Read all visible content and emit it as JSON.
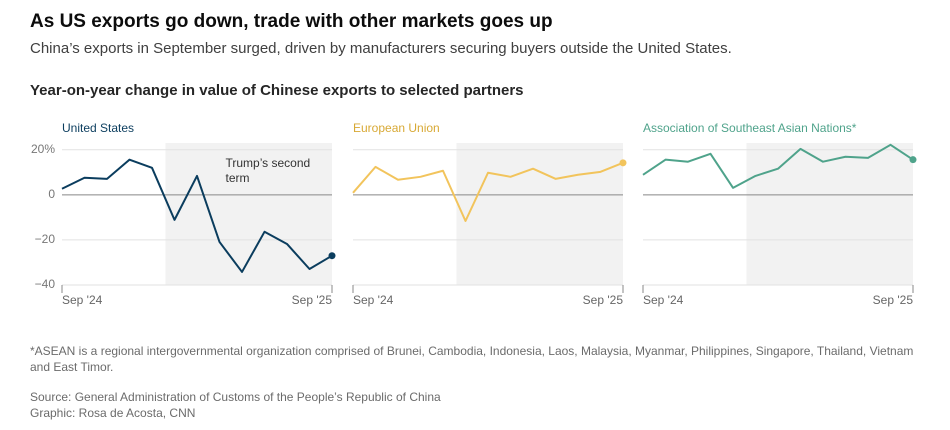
{
  "chart_data": {
    "type": "line",
    "title": "As US exports go down, trade with other markets goes up",
    "subtitle": "China’s exports in September surged, driven by manufacturers securing buyers outside the United States.",
    "chart_title": "Year-on-year change in value of Chinese exports to selected partners",
    "categories": [
      "Sep '24",
      null,
      null,
      null,
      null,
      null,
      null,
      null,
      null,
      null,
      null,
      null,
      "Sep '25"
    ],
    "ylim": [
      -40,
      23
    ],
    "yticks": [
      {
        "value": 20,
        "label": "20%"
      },
      0,
      {
        "value": -20,
        "label": "−20"
      },
      {
        "value": -40,
        "label": "−40"
      }
    ],
    "grid": true,
    "annotation": {
      "text": "Trump’s second term",
      "x_start": 4.6
    },
    "series": [
      {
        "name": "United States",
        "color": "#0b3d5e",
        "values": [
          2.7,
          7.6,
          7.1,
          15.6,
          12,
          -11.1,
          8.4,
          -20.9,
          -34.2,
          -16.4,
          -21.8,
          -32.9,
          -27
        ]
      },
      {
        "name": "European Union",
        "color": "#f2c45c",
        "values": [
          0.9,
          12.4,
          6.7,
          8.0,
          10.7,
          -11.6,
          9.8,
          8.0,
          11.6,
          7.1,
          8.9,
          10.2,
          14.2
        ]
      },
      {
        "name": "Association of Southeast Asian Nations*",
        "color": "#4fa38b",
        "values": [
          8.9,
          15.6,
          14.7,
          18.2,
          3.1,
          8.4,
          11.6,
          20.4,
          14.7,
          16.9,
          16.4,
          22.2,
          15.6
        ]
      }
    ],
    "footnote": "*ASEAN is a regional intergovernmental organization comprised of Brunei, Cambodia, Indonesia, Laos, Malaysia, Myanmar, Philippines, Singapore, Thailand, Vietnam and East Timor.",
    "source": "Source: General Administration of Customs of the People’s Republic of China",
    "credit": "Graphic: Rosa de Acosta, CNN"
  }
}
